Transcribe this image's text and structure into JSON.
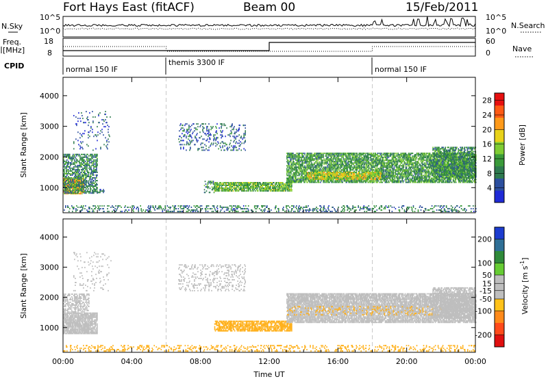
{
  "header": {
    "radar": "Fort Hays East (fitACF)",
    "beam": "Beam 00",
    "date": "15/Feb/2011"
  },
  "top_panel": {
    "nsky_label": "N.Sky",
    "nsearch_label": "N.Search",
    "count_ticks": [
      "10^5",
      "10^0"
    ],
    "freq_label_1": "Freq.",
    "freq_label_2": "[MHz]",
    "freq_ticks": [
      "18",
      "8"
    ],
    "nave_label": "Nave",
    "nave_ticks": [
      "60",
      "0"
    ],
    "cpid_label": "CPID",
    "cpid_segments": [
      "normal 150 IF",
      "themis 3300 IF",
      "normal 150 IF"
    ]
  },
  "colors": {
    "power_scale": [
      "#1f2ad6",
      "#2c4f9e",
      "#2e7a4f",
      "#3a9a3a",
      "#7fcc33",
      "#e8d21a",
      "#ff9a1a",
      "#ff5a14",
      "#e60f0f"
    ],
    "velocity_scale": [
      "#1c3ccf",
      "#2f6f96",
      "#2f8a3a",
      "#66cc33",
      "#bebebe",
      "#bebebe",
      "#ffc21a",
      "#ff8a1a",
      "#ff4a1a",
      "#e00f0f"
    ],
    "ground_scatter": "#bebebe"
  },
  "chart_data": [
    {
      "type": "heatmap",
      "title": "Power",
      "xlabel": "Time UT",
      "ylabel": "Slant Range [km]",
      "x_ticks": [
        "00:00",
        "04:00",
        "08:00",
        "12:00",
        "16:00",
        "20:00",
        "00:00"
      ],
      "xlim_hours": [
        0,
        24
      ],
      "ylim_km": [
        180,
        4600
      ],
      "y_ticks": [
        1000,
        2000,
        3000,
        4000
      ],
      "colorbar": {
        "label": "Power [dB]",
        "ticks": [
          4,
          8,
          12,
          16,
          20,
          24,
          28
        ],
        "range": [
          0,
          30
        ]
      },
      "echo_regions": [
        {
          "t0": 0.0,
          "t1": 1.2,
          "r0": 780,
          "r1": 1300,
          "level": 20,
          "density": 0.8
        },
        {
          "t0": 0.0,
          "t1": 2.0,
          "r0": 800,
          "r1": 2100,
          "level": 9,
          "density": 0.5
        },
        {
          "t0": 0.6,
          "t1": 2.8,
          "r0": 2200,
          "r1": 3500,
          "level": 5,
          "density": 0.07
        },
        {
          "t0": 1.8,
          "t1": 2.4,
          "r0": 820,
          "r1": 920,
          "level": 8,
          "density": 0.45
        },
        {
          "t0": 6.7,
          "t1": 10.6,
          "r0": 2200,
          "r1": 3100,
          "level": 6,
          "density": 0.16
        },
        {
          "t0": 8.2,
          "t1": 8.8,
          "r0": 820,
          "r1": 1200,
          "level": 9,
          "density": 0.3
        },
        {
          "t0": 8.8,
          "t1": 13.3,
          "r0": 870,
          "r1": 1150,
          "level": 13,
          "density": 0.7
        },
        {
          "t0": 13.0,
          "t1": 24.0,
          "r0": 1150,
          "r1": 2100,
          "level": 11,
          "density": 0.65
        },
        {
          "t0": 14.2,
          "t1": 18.5,
          "r0": 1250,
          "r1": 1500,
          "level": 17,
          "density": 0.6
        },
        {
          "t0": 21.5,
          "t1": 24.0,
          "r0": 1300,
          "r1": 2300,
          "level": 10,
          "density": 0.6
        },
        {
          "t0": 0.0,
          "t1": 24.0,
          "r0": 200,
          "r1": 420,
          "level": 8,
          "density": 0.22
        }
      ]
    },
    {
      "type": "heatmap",
      "title": "Velocity",
      "xlabel": "Time UT",
      "ylabel": "Slant Range [km]",
      "x_ticks": [
        "00:00",
        "04:00",
        "08:00",
        "12:00",
        "16:00",
        "20:00",
        "00:00"
      ],
      "xlim_hours": [
        0,
        24
      ],
      "ylim_km": [
        180,
        4600
      ],
      "y_ticks": [
        1000,
        2000,
        3000,
        4000
      ],
      "colorbar": {
        "label": "Velocity [m s-1]",
        "ticks": [
          200,
          100,
          50,
          15,
          -15,
          -50,
          -100,
          -200
        ],
        "range": [
          -250,
          250
        ]
      },
      "echo_regions": [
        {
          "t0": 0.0,
          "t1": 2.0,
          "r0": 780,
          "r1": 1500,
          "level": 0,
          "density": 0.8
        },
        {
          "t0": 0.0,
          "t1": 1.5,
          "r0": 1500,
          "r1": 2100,
          "level": 0,
          "density": 0.45
        },
        {
          "t0": 0.6,
          "t1": 2.8,
          "r0": 2200,
          "r1": 3500,
          "level": 0,
          "density": 0.07
        },
        {
          "t0": 6.7,
          "t1": 10.6,
          "r0": 2200,
          "r1": 3100,
          "level": 0,
          "density": 0.16
        },
        {
          "t0": 8.8,
          "t1": 13.3,
          "r0": 870,
          "r1": 1200,
          "level": -30,
          "density": 0.65
        },
        {
          "t0": 13.0,
          "t1": 24.0,
          "r0": 1150,
          "r1": 2100,
          "level": 0,
          "density": 0.75
        },
        {
          "t0": 13.0,
          "t1": 22.0,
          "r0": 1400,
          "r1": 1700,
          "level": -40,
          "density": 0.12
        },
        {
          "t0": 21.5,
          "t1": 24.0,
          "r0": 1300,
          "r1": 2300,
          "level": 0,
          "density": 0.6
        },
        {
          "t0": 0.0,
          "t1": 24.0,
          "r0": 200,
          "r1": 420,
          "level": -40,
          "density": 0.2
        }
      ]
    }
  ]
}
